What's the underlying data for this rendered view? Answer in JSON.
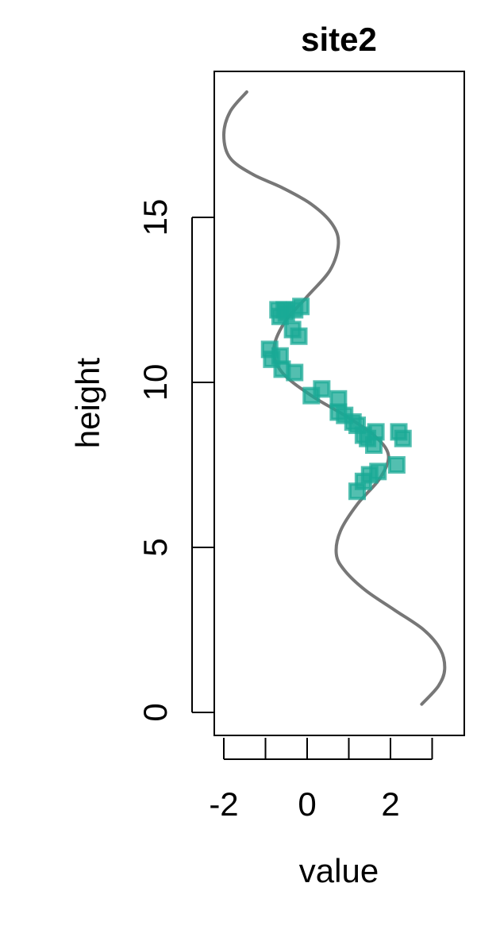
{
  "chart_data": {
    "type": "scatter",
    "title": "site2",
    "xlabel": "value",
    "ylabel": "height",
    "xlim": [
      -2.2,
      3.8
    ],
    "ylim": [
      -0.7,
      19.5
    ],
    "x_ticks": [
      -2,
      -1,
      0,
      1,
      2,
      3
    ],
    "x_tick_labels": [
      "-2",
      "",
      "0",
      "",
      "2",
      ""
    ],
    "y_ticks": [
      0,
      5,
      10,
      15
    ],
    "y_tick_labels": [
      "0",
      "5",
      "10",
      "15"
    ],
    "grid": false,
    "legend": "none",
    "colors": {
      "points": "#1aaa95",
      "curve": "#555555"
    },
    "series": [
      {
        "type": "scatter",
        "marker": "square",
        "points": [
          [
            -0.7,
            12.2
          ],
          [
            -0.55,
            12.2
          ],
          [
            -0.65,
            12.0
          ],
          [
            -0.5,
            12.1
          ],
          [
            -0.15,
            12.3
          ],
          [
            -0.3,
            12.2
          ],
          [
            -0.35,
            11.6
          ],
          [
            -0.2,
            11.4
          ],
          [
            -0.9,
            11.0
          ],
          [
            -0.85,
            10.7
          ],
          [
            -0.65,
            10.8
          ],
          [
            -0.6,
            10.4
          ],
          [
            -0.3,
            10.3
          ],
          [
            0.1,
            9.6
          ],
          [
            0.35,
            9.8
          ],
          [
            0.75,
            9.5
          ],
          [
            0.75,
            9.1
          ],
          [
            0.9,
            9.0
          ],
          [
            1.1,
            8.8
          ],
          [
            1.2,
            8.7
          ],
          [
            1.35,
            8.4
          ],
          [
            1.45,
            8.3
          ],
          [
            1.65,
            8.5
          ],
          [
            1.6,
            8.1
          ],
          [
            2.2,
            8.5
          ],
          [
            2.3,
            8.3
          ],
          [
            2.15,
            7.5
          ],
          [
            1.7,
            7.3
          ],
          [
            1.5,
            7.2
          ],
          [
            1.35,
            7.0
          ],
          [
            1.2,
            6.7
          ]
        ]
      },
      {
        "type": "line",
        "points": [
          [
            -1.45,
            18.8
          ],
          [
            -1.85,
            18.2
          ],
          [
            -2.0,
            17.5
          ],
          [
            -1.85,
            16.8
          ],
          [
            -1.3,
            16.3
          ],
          [
            -0.6,
            15.9
          ],
          [
            0.1,
            15.4
          ],
          [
            0.6,
            14.8
          ],
          [
            0.75,
            14.2
          ],
          [
            0.55,
            13.4
          ],
          [
            0.0,
            12.6
          ],
          [
            -0.55,
            11.8
          ],
          [
            -0.8,
            11.0
          ],
          [
            -0.6,
            10.3
          ],
          [
            0.1,
            9.6
          ],
          [
            0.9,
            9.0
          ],
          [
            1.6,
            8.4
          ],
          [
            1.95,
            7.8
          ],
          [
            1.75,
            7.1
          ],
          [
            1.2,
            6.3
          ],
          [
            0.8,
            5.5
          ],
          [
            0.7,
            4.8
          ],
          [
            0.9,
            4.3
          ],
          [
            1.4,
            3.7
          ],
          [
            2.1,
            3.1
          ],
          [
            2.8,
            2.5
          ],
          [
            3.2,
            1.9
          ],
          [
            3.3,
            1.3
          ],
          [
            3.15,
            0.8
          ],
          [
            2.75,
            0.25
          ]
        ]
      }
    ]
  }
}
